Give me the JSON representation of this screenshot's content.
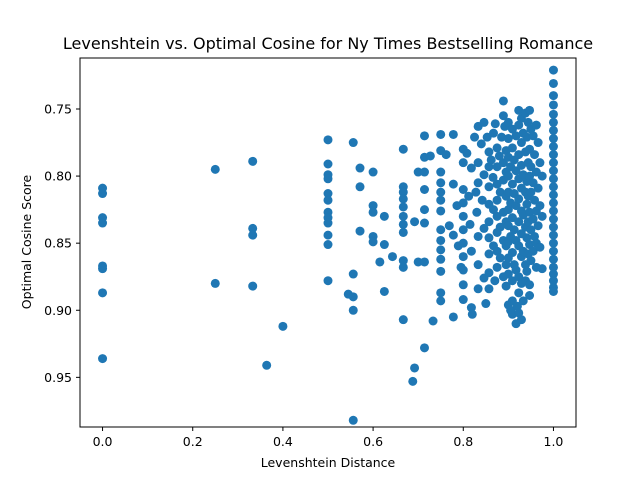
{
  "chart_data": {
    "type": "scatter",
    "title": "Levenshtein vs. Optimal Cosine for Ny Times Bestselling Romance",
    "xlabel": "Levenshtein Distance",
    "ylabel": "Optimal Cosine Score",
    "xlim": [
      -0.05,
      1.05
    ],
    "ylim": [
      0.987,
      0.712
    ],
    "y_inverted": true,
    "grid": false,
    "legend": "none",
    "marker_color": "#1f77b4",
    "xticks": [
      {
        "value": 0.0,
        "label": "0.0"
      },
      {
        "value": 0.2,
        "label": "0.2"
      },
      {
        "value": 0.4,
        "label": "0.4"
      },
      {
        "value": 0.6,
        "label": "0.6"
      },
      {
        "value": 0.8,
        "label": "0.8"
      },
      {
        "value": 1.0,
        "label": "1.0"
      }
    ],
    "yticks": [
      {
        "value": 0.75,
        "label": "0.75"
      },
      {
        "value": 0.8,
        "label": "0.80"
      },
      {
        "value": 0.85,
        "label": "0.85"
      },
      {
        "value": 0.9,
        "label": "0.90"
      },
      {
        "value": 0.95,
        "label": "0.95"
      }
    ],
    "points": [
      [
        0.0,
        0.809
      ],
      [
        0.0,
        0.813
      ],
      [
        0.0,
        0.831
      ],
      [
        0.0,
        0.835
      ],
      [
        0.0,
        0.867
      ],
      [
        0.0,
        0.869
      ],
      [
        0.0,
        0.887
      ],
      [
        0.0,
        0.936
      ],
      [
        0.25,
        0.795
      ],
      [
        0.25,
        0.88
      ],
      [
        0.333,
        0.789
      ],
      [
        0.333,
        0.839
      ],
      [
        0.333,
        0.844
      ],
      [
        0.333,
        0.882
      ],
      [
        0.364,
        0.941
      ],
      [
        0.4,
        0.912
      ],
      [
        0.5,
        0.773
      ],
      [
        0.5,
        0.791
      ],
      [
        0.5,
        0.799
      ],
      [
        0.5,
        0.802
      ],
      [
        0.5,
        0.813
      ],
      [
        0.5,
        0.818
      ],
      [
        0.5,
        0.827
      ],
      [
        0.5,
        0.831
      ],
      [
        0.5,
        0.835
      ],
      [
        0.5,
        0.844
      ],
      [
        0.5,
        0.851
      ],
      [
        0.5,
        0.878
      ],
      [
        0.545,
        0.888
      ],
      [
        0.556,
        0.775
      ],
      [
        0.556,
        0.873
      ],
      [
        0.556,
        0.89
      ],
      [
        0.556,
        0.9
      ],
      [
        0.556,
        0.982
      ],
      [
        0.571,
        0.794
      ],
      [
        0.571,
        0.808
      ],
      [
        0.571,
        0.841
      ],
      [
        0.6,
        0.797
      ],
      [
        0.6,
        0.822
      ],
      [
        0.6,
        0.827
      ],
      [
        0.6,
        0.845
      ],
      [
        0.6,
        0.849
      ],
      [
        0.615,
        0.864
      ],
      [
        0.625,
        0.83
      ],
      [
        0.625,
        0.851
      ],
      [
        0.625,
        0.886
      ],
      [
        0.643,
        0.86
      ],
      [
        0.667,
        0.78
      ],
      [
        0.667,
        0.808
      ],
      [
        0.667,
        0.812
      ],
      [
        0.667,
        0.817
      ],
      [
        0.667,
        0.823
      ],
      [
        0.667,
        0.83
      ],
      [
        0.667,
        0.836
      ],
      [
        0.667,
        0.842
      ],
      [
        0.667,
        0.863
      ],
      [
        0.667,
        0.868
      ],
      [
        0.667,
        0.907
      ],
      [
        0.688,
        0.953
      ],
      [
        0.692,
        0.943
      ],
      [
        0.692,
        0.834
      ],
      [
        0.7,
        0.797
      ],
      [
        0.7,
        0.864
      ],
      [
        0.714,
        0.77
      ],
      [
        0.714,
        0.786
      ],
      [
        0.714,
        0.797
      ],
      [
        0.714,
        0.81
      ],
      [
        0.714,
        0.825
      ],
      [
        0.714,
        0.835
      ],
      [
        0.714,
        0.864
      ],
      [
        0.714,
        0.928
      ],
      [
        0.727,
        0.785
      ],
      [
        0.733,
        0.908
      ],
      [
        0.75,
        0.769
      ],
      [
        0.75,
        0.781
      ],
      [
        0.75,
        0.797
      ],
      [
        0.75,
        0.805
      ],
      [
        0.75,
        0.812
      ],
      [
        0.75,
        0.818
      ],
      [
        0.75,
        0.826
      ],
      [
        0.75,
        0.84
      ],
      [
        0.75,
        0.848
      ],
      [
        0.75,
        0.855
      ],
      [
        0.75,
        0.862
      ],
      [
        0.75,
        0.871
      ],
      [
        0.75,
        0.887
      ],
      [
        0.75,
        0.893
      ],
      [
        0.762,
        0.784
      ],
      [
        0.769,
        0.837
      ],
      [
        0.778,
        0.769
      ],
      [
        0.778,
        0.806
      ],
      [
        0.778,
        0.844
      ],
      [
        0.778,
        0.905
      ],
      [
        0.786,
        0.822
      ],
      [
        0.789,
        0.852
      ],
      [
        0.795,
        0.868
      ],
      [
        0.8,
        0.78
      ],
      [
        0.8,
        0.79
      ],
      [
        0.8,
        0.81
      ],
      [
        0.8,
        0.82
      ],
      [
        0.8,
        0.83
      ],
      [
        0.8,
        0.84
      ],
      [
        0.8,
        0.85
      ],
      [
        0.8,
        0.86
      ],
      [
        0.8,
        0.87
      ],
      [
        0.8,
        0.881
      ],
      [
        0.8,
        0.892
      ],
      [
        0.808,
        0.783
      ],
      [
        0.812,
        0.815
      ],
      [
        0.815,
        0.836
      ],
      [
        0.818,
        0.794
      ],
      [
        0.818,
        0.856
      ],
      [
        0.818,
        0.898
      ],
      [
        0.82,
        0.903
      ],
      [
        0.825,
        0.771
      ],
      [
        0.828,
        0.812
      ],
      [
        0.83,
        0.827
      ],
      [
        0.833,
        0.763
      ],
      [
        0.833,
        0.79
      ],
      [
        0.833,
        0.805
      ],
      [
        0.833,
        0.845
      ],
      [
        0.833,
        0.866
      ],
      [
        0.833,
        0.884
      ],
      [
        0.84,
        0.776
      ],
      [
        0.842,
        0.818
      ],
      [
        0.846,
        0.76
      ],
      [
        0.846,
        0.799
      ],
      [
        0.846,
        0.839
      ],
      [
        0.846,
        0.876
      ],
      [
        0.85,
        0.895
      ],
      [
        0.853,
        0.771
      ],
      [
        0.857,
        0.782
      ],
      [
        0.857,
        0.793
      ],
      [
        0.857,
        0.808
      ],
      [
        0.857,
        0.821
      ],
      [
        0.857,
        0.834
      ],
      [
        0.857,
        0.846
      ],
      [
        0.857,
        0.858
      ],
      [
        0.857,
        0.872
      ],
      [
        0.857,
        0.884
      ],
      [
        0.862,
        0.788
      ],
      [
        0.866,
        0.801
      ],
      [
        0.867,
        0.768
      ],
      [
        0.867,
        0.825
      ],
      [
        0.867,
        0.852
      ],
      [
        0.87,
        0.878
      ],
      [
        0.871,
        0.761
      ],
      [
        0.875,
        0.779
      ],
      [
        0.875,
        0.793
      ],
      [
        0.875,
        0.806
      ],
      [
        0.875,
        0.818
      ],
      [
        0.875,
        0.83
      ],
      [
        0.875,
        0.842
      ],
      [
        0.875,
        0.856
      ],
      [
        0.875,
        0.868
      ],
      [
        0.88,
        0.785
      ],
      [
        0.882,
        0.812
      ],
      [
        0.882,
        0.838
      ],
      [
        0.882,
        0.861
      ],
      [
        0.885,
        0.771
      ],
      [
        0.889,
        0.744
      ],
      [
        0.889,
        0.755
      ],
      [
        0.889,
        0.79
      ],
      [
        0.889,
        0.803
      ],
      [
        0.889,
        0.827
      ],
      [
        0.889,
        0.848
      ],
      [
        0.889,
        0.875
      ],
      [
        0.892,
        0.763
      ],
      [
        0.895,
        0.781
      ],
      [
        0.895,
        0.797
      ],
      [
        0.895,
        0.815
      ],
      [
        0.895,
        0.834
      ],
      [
        0.895,
        0.852
      ],
      [
        0.895,
        0.866
      ],
      [
        0.895,
        0.882
      ],
      [
        0.9,
        0.76
      ],
      [
        0.9,
        0.772
      ],
      [
        0.9,
        0.786
      ],
      [
        0.9,
        0.8
      ],
      [
        0.9,
        0.812
      ],
      [
        0.9,
        0.825
      ],
      [
        0.9,
        0.837
      ],
      [
        0.9,
        0.849
      ],
      [
        0.9,
        0.861
      ],
      [
        0.9,
        0.873
      ],
      [
        0.9,
        0.896
      ],
      [
        0.905,
        0.793
      ],
      [
        0.905,
        0.82
      ],
      [
        0.905,
        0.845
      ],
      [
        0.905,
        0.9
      ],
      [
        0.909,
        0.765
      ],
      [
        0.909,
        0.779
      ],
      [
        0.909,
        0.806
      ],
      [
        0.909,
        0.831
      ],
      [
        0.909,
        0.857
      ],
      [
        0.909,
        0.878
      ],
      [
        0.909,
        0.893
      ],
      [
        0.909,
        0.903
      ],
      [
        0.913,
        0.788
      ],
      [
        0.913,
        0.813
      ],
      [
        0.913,
        0.84
      ],
      [
        0.913,
        0.866
      ],
      [
        0.917,
        0.77
      ],
      [
        0.917,
        0.796
      ],
      [
        0.917,
        0.822
      ],
      [
        0.917,
        0.848
      ],
      [
        0.917,
        0.87
      ],
      [
        0.917,
        0.91
      ],
      [
        0.92,
        0.897
      ],
      [
        0.923,
        0.751
      ],
      [
        0.923,
        0.762
      ],
      [
        0.923,
        0.784
      ],
      [
        0.923,
        0.802
      ],
      [
        0.923,
        0.817
      ],
      [
        0.923,
        0.834
      ],
      [
        0.923,
        0.852
      ],
      [
        0.923,
        0.875
      ],
      [
        0.923,
        0.887
      ],
      [
        0.923,
        0.902
      ],
      [
        0.929,
        0.757
      ],
      [
        0.929,
        0.775
      ],
      [
        0.929,
        0.792
      ],
      [
        0.929,
        0.809
      ],
      [
        0.929,
        0.826
      ],
      [
        0.929,
        0.843
      ],
      [
        0.929,
        0.86
      ],
      [
        0.929,
        0.88
      ],
      [
        0.929,
        0.907
      ],
      [
        0.933,
        0.768
      ],
      [
        0.933,
        0.799
      ],
      [
        0.933,
        0.829
      ],
      [
        0.933,
        0.856
      ],
      [
        0.933,
        0.893
      ],
      [
        0.938,
        0.753
      ],
      [
        0.938,
        0.782
      ],
      [
        0.938,
        0.812
      ],
      [
        0.938,
        0.838
      ],
      [
        0.938,
        0.866
      ],
      [
        0.938,
        0.878
      ],
      [
        0.941,
        0.771
      ],
      [
        0.941,
        0.804
      ],
      [
        0.941,
        0.821
      ],
      [
        0.941,
        0.846
      ],
      [
        0.941,
        0.871
      ],
      [
        0.944,
        0.76
      ],
      [
        0.944,
        0.79
      ],
      [
        0.944,
        0.815
      ],
      [
        0.944,
        0.834
      ],
      [
        0.944,
        0.858
      ],
      [
        0.947,
        0.751
      ],
      [
        0.947,
        0.78
      ],
      [
        0.947,
        0.8
      ],
      [
        0.947,
        0.827
      ],
      [
        0.947,
        0.851
      ],
      [
        0.947,
        0.881
      ],
      [
        0.947,
        0.889
      ],
      [
        0.95,
        0.765
      ],
      [
        0.95,
        0.793
      ],
      [
        0.95,
        0.812
      ],
      [
        0.95,
        0.84
      ],
      [
        0.95,
        0.863
      ],
      [
        0.955,
        0.77
      ],
      [
        0.955,
        0.805
      ],
      [
        0.955,
        0.832
      ],
      [
        0.955,
        0.856
      ],
      [
        0.958,
        0.784
      ],
      [
        0.958,
        0.818
      ],
      [
        0.958,
        0.845
      ],
      [
        0.962,
        0.762
      ],
      [
        0.962,
        0.797
      ],
      [
        0.962,
        0.826
      ],
      [
        0.962,
        0.85
      ],
      [
        0.962,
        0.868
      ],
      [
        0.966,
        0.775
      ],
      [
        0.966,
        0.809
      ],
      [
        0.966,
        0.837
      ],
      [
        0.97,
        0.79
      ],
      [
        0.97,
        0.822
      ],
      [
        0.97,
        0.853
      ],
      [
        0.975,
        0.8
      ],
      [
        0.975,
        0.83
      ],
      [
        0.975,
        0.869
      ],
      [
        1.0,
        0.721
      ],
      [
        1.0,
        0.731
      ],
      [
        1.0,
        0.74
      ],
      [
        1.0,
        0.747
      ],
      [
        1.0,
        0.754
      ],
      [
        1.0,
        0.76
      ],
      [
        1.0,
        0.766
      ],
      [
        1.0,
        0.772
      ],
      [
        1.0,
        0.778
      ],
      [
        1.0,
        0.784
      ],
      [
        1.0,
        0.79
      ],
      [
        1.0,
        0.796
      ],
      [
        1.0,
        0.802
      ],
      [
        1.0,
        0.808
      ],
      [
        1.0,
        0.814
      ],
      [
        1.0,
        0.82
      ],
      [
        1.0,
        0.826
      ],
      [
        1.0,
        0.832
      ],
      [
        1.0,
        0.838
      ],
      [
        1.0,
        0.844
      ],
      [
        1.0,
        0.85
      ],
      [
        1.0,
        0.856
      ],
      [
        1.0,
        0.862
      ],
      [
        1.0,
        0.868
      ],
      [
        1.0,
        0.873
      ],
      [
        1.0,
        0.878
      ],
      [
        1.0,
        0.883
      ],
      [
        1.0,
        0.886
      ]
    ]
  }
}
